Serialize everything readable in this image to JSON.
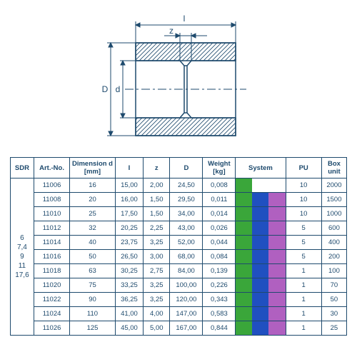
{
  "diagram": {
    "labels": {
      "l": "l",
      "z": "z",
      "D": "D",
      "d": "d"
    },
    "colors": {
      "line": "#1e4a6d",
      "hatch": "#1e4a6d",
      "dash": "#1e4a6d"
    }
  },
  "table": {
    "headers": {
      "sdr": "SDR",
      "art": "Art.-No.",
      "dim": "Dimension d [mm]",
      "i": "I",
      "z": "z",
      "D": "D",
      "wt": "Weight [kg]",
      "sys": "System",
      "pu": "PU",
      "box": "Box unit"
    },
    "sdr_values": [
      "6",
      "7,4",
      "9",
      "11",
      "17,6"
    ],
    "system_colors": {
      "g": "#3aa63a",
      "b": "#2050c0",
      "p": "#b060c0",
      "none": "transparent"
    },
    "rows": [
      {
        "art": "11006",
        "dim": "16",
        "i": "15,00",
        "z": "2,00",
        "D": "24,50",
        "wt": "0,008",
        "sys": [
          "g",
          "none",
          "none"
        ],
        "pu": "10",
        "box": "2000"
      },
      {
        "art": "11008",
        "dim": "20",
        "i": "16,00",
        "z": "1,50",
        "D": "29,50",
        "wt": "0,011",
        "sys": [
          "g",
          "b",
          "p"
        ],
        "pu": "10",
        "box": "1500"
      },
      {
        "art": "11010",
        "dim": "25",
        "i": "17,50",
        "z": "1,50",
        "D": "34,00",
        "wt": "0,014",
        "sys": [
          "g",
          "b",
          "p"
        ],
        "pu": "10",
        "box": "1000"
      },
      {
        "art": "11012",
        "dim": "32",
        "i": "20,25",
        "z": "2,25",
        "D": "43,00",
        "wt": "0,026",
        "sys": [
          "g",
          "b",
          "p"
        ],
        "pu": "5",
        "box": "600"
      },
      {
        "art": "11014",
        "dim": "40",
        "i": "23,75",
        "z": "3,25",
        "D": "52,00",
        "wt": "0,044",
        "sys": [
          "g",
          "b",
          "p"
        ],
        "pu": "5",
        "box": "400"
      },
      {
        "art": "11016",
        "dim": "50",
        "i": "26,50",
        "z": "3,00",
        "D": "68,00",
        "wt": "0,084",
        "sys": [
          "g",
          "b",
          "p"
        ],
        "pu": "5",
        "box": "200"
      },
      {
        "art": "11018",
        "dim": "63",
        "i": "30,25",
        "z": "2,75",
        "D": "84,00",
        "wt": "0,139",
        "sys": [
          "g",
          "b",
          "p"
        ],
        "pu": "1",
        "box": "100"
      },
      {
        "art": "11020",
        "dim": "75",
        "i": "33,25",
        "z": "3,25",
        "D": "100,00",
        "wt": "0,226",
        "sys": [
          "g",
          "b",
          "p"
        ],
        "pu": "1",
        "box": "70"
      },
      {
        "art": "11022",
        "dim": "90",
        "i": "36,25",
        "z": "3,25",
        "D": "120,00",
        "wt": "0,343",
        "sys": [
          "g",
          "b",
          "p"
        ],
        "pu": "1",
        "box": "50"
      },
      {
        "art": "11024",
        "dim": "110",
        "i": "41,00",
        "z": "4,00",
        "D": "147,00",
        "wt": "0,583",
        "sys": [
          "g",
          "b",
          "p"
        ],
        "pu": "1",
        "box": "30"
      },
      {
        "art": "11026",
        "dim": "125",
        "i": "45,00",
        "z": "5,00",
        "D": "167,00",
        "wt": "0,844",
        "sys": [
          "g",
          "b",
          "p"
        ],
        "pu": "1",
        "box": "25"
      }
    ]
  }
}
